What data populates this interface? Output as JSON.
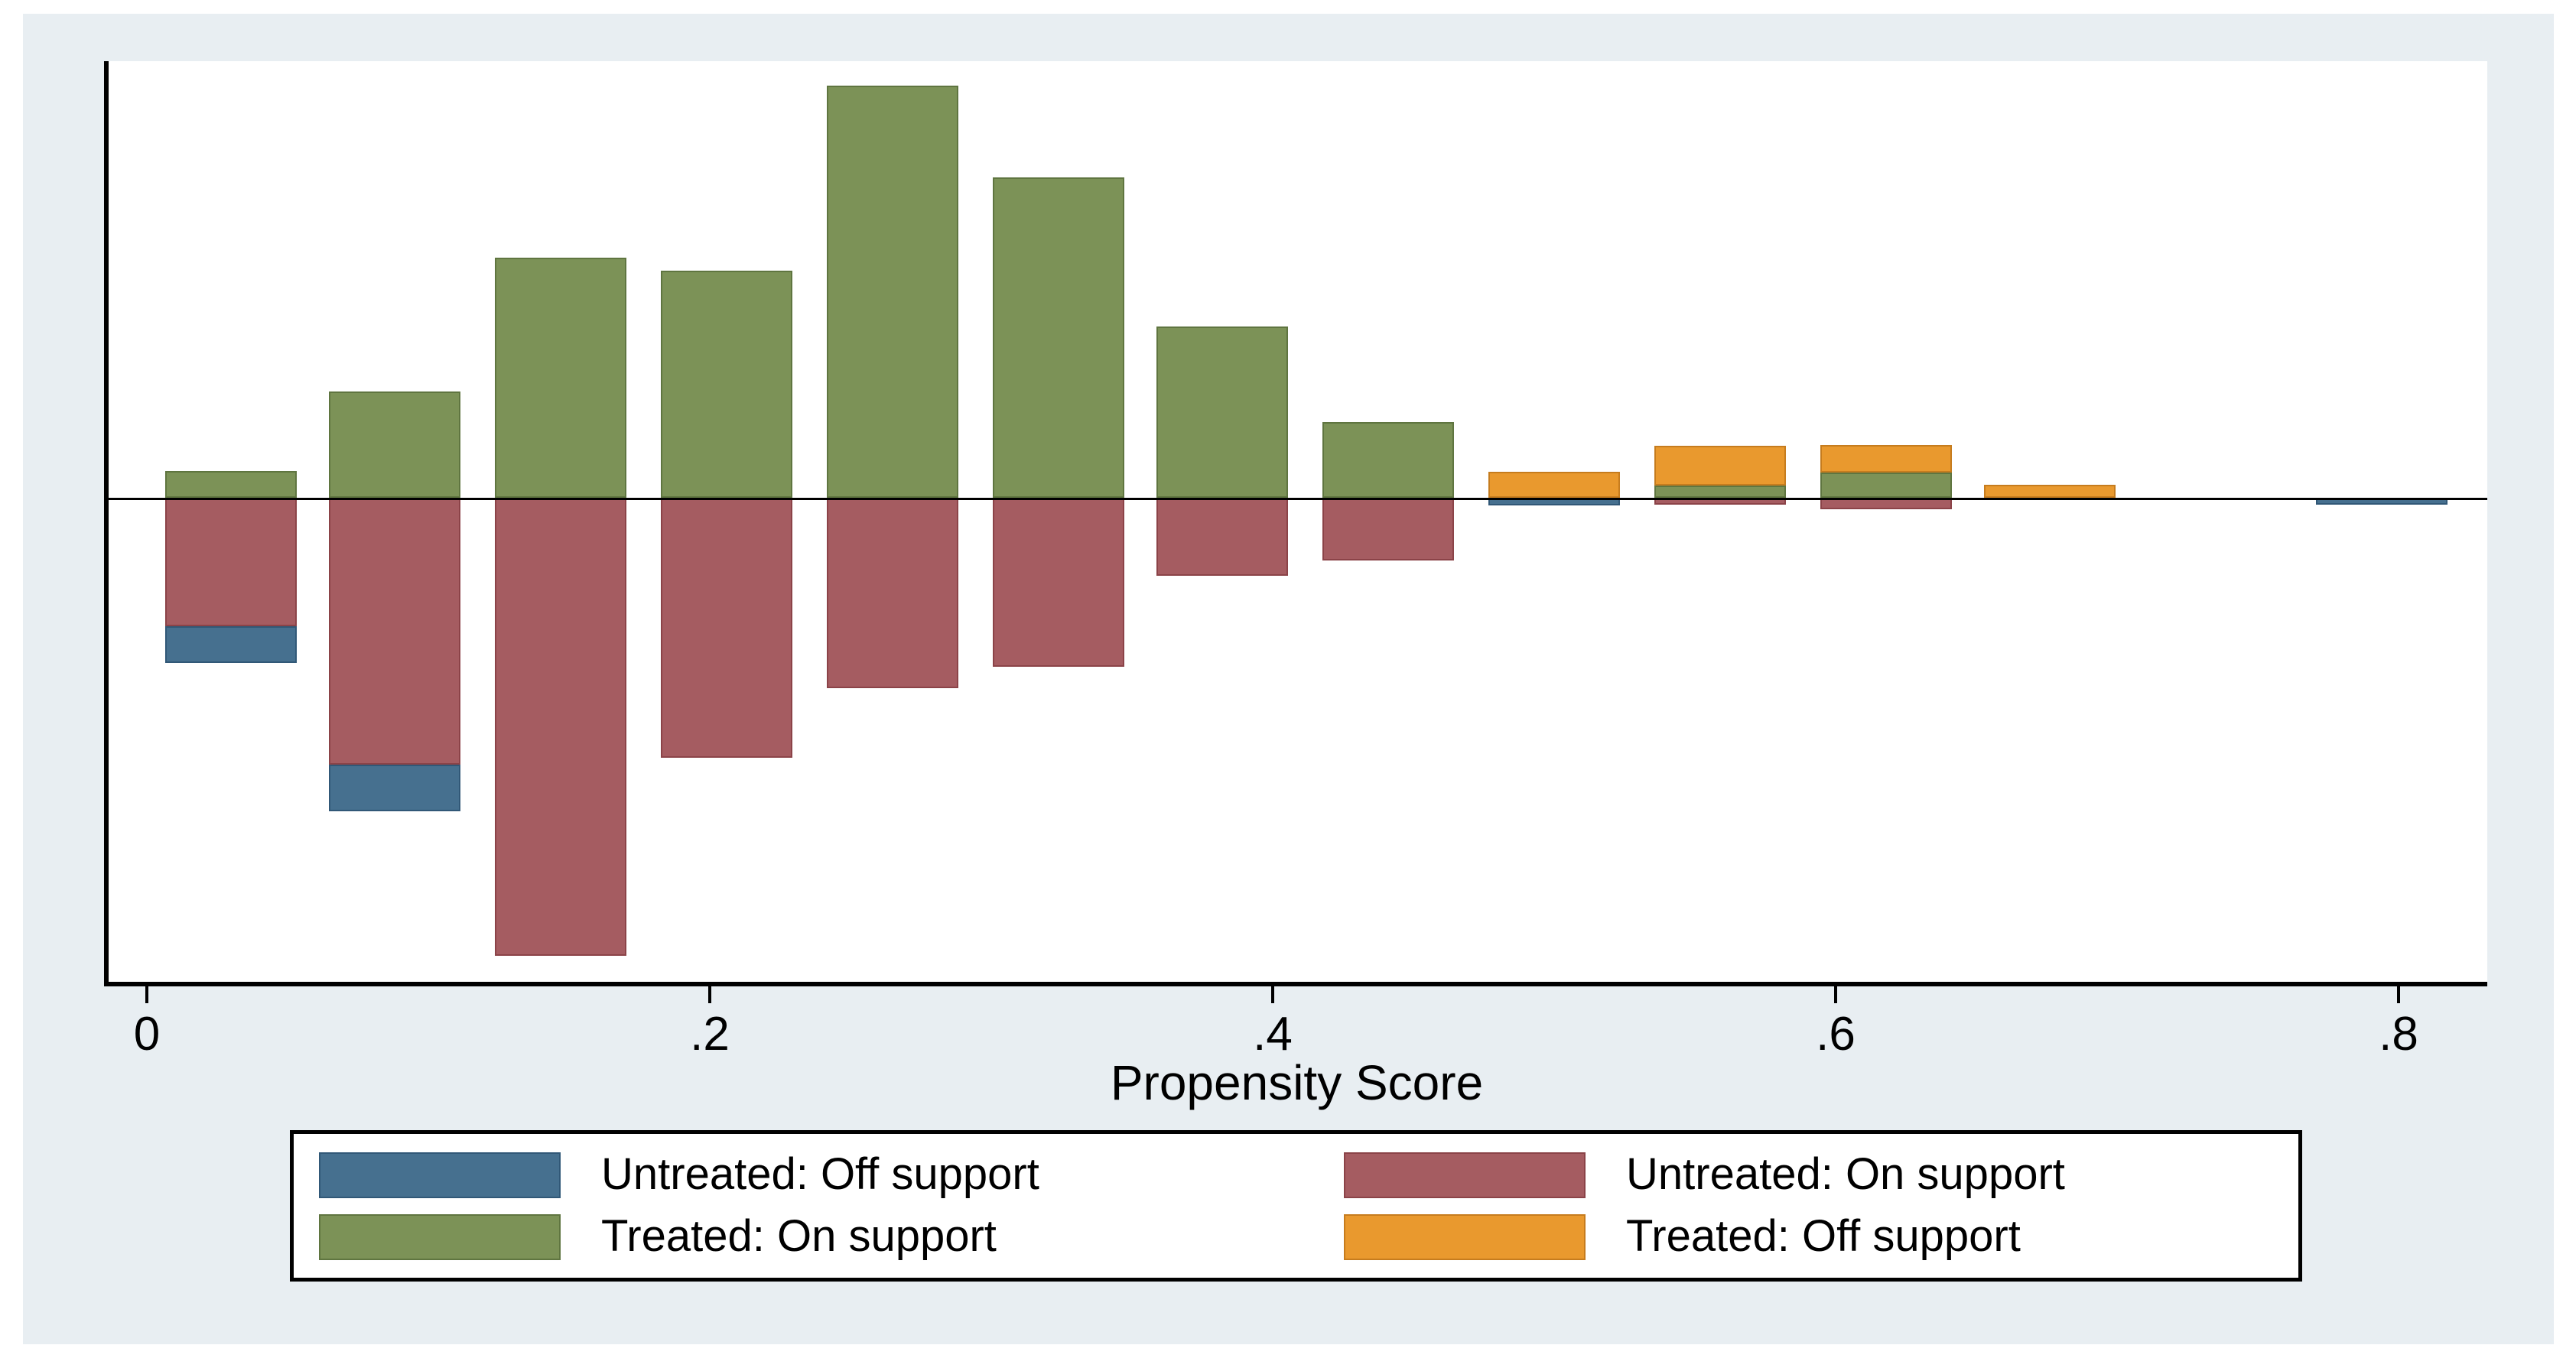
{
  "figure": {
    "background": "#ffffff",
    "panel_color": "#e8eef2"
  },
  "x_axis": {
    "label": "Propensity Score",
    "ticks": [
      {
        "value": 0,
        "label": "0"
      },
      {
        "value": 0.2,
        "label": ".2"
      },
      {
        "value": 0.4,
        "label": ".4"
      },
      {
        "value": 0.6,
        "label": ".6"
      },
      {
        "value": 0.8,
        "label": ".8"
      }
    ]
  },
  "legend": {
    "items": [
      {
        "key": "untreated_off",
        "label": "Untreated: Off support",
        "color": "#46708f"
      },
      {
        "key": "untreated_on",
        "label": "Untreated: On support",
        "color": "#a55c61"
      },
      {
        "key": "treated_on",
        "label": "Treated: On support",
        "color": "#7c9257"
      },
      {
        "key": "treated_off",
        "label": "Treated: Off support",
        "color": "#e9992e"
      }
    ]
  },
  "colors": {
    "treated_on": "#7c9257",
    "treated_on_border": "#5f7540",
    "treated_off": "#e9992e",
    "treated_off_border": "#c67c1e",
    "untreated_on": "#a55c61",
    "untreated_on_border": "#8b4348",
    "untreated_off": "#46708f",
    "untreated_off_border": "#315877",
    "axis": "#000000"
  },
  "chart_data": {
    "type": "bar",
    "title": "",
    "xlabel": "Propensity Score",
    "ylabel": "",
    "xlim": [
      -0.015,
      0.832
    ],
    "x_ticks": [
      0,
      0.2,
      0.4,
      0.6,
      0.8
    ],
    "grid": false,
    "legend_position": "bottom",
    "y_axis_note": "No y-axis labels in source; values are relative frequencies normalized so the tallest treated bar = 1.0. Treated groups plot upward from the baseline, untreated groups plot downward.",
    "bar_width": 0.047,
    "bin_spacing": 0.0588,
    "series_keys": [
      "treated_on",
      "treated_off",
      "untreated_on",
      "untreated_off"
    ],
    "bins": [
      {
        "center": 0.03,
        "treated_on": 0.065,
        "treated_off": 0,
        "untreated_on": 0.312,
        "untreated_off": 0.089
      },
      {
        "center": 0.088,
        "treated_on": 0.258,
        "treated_off": 0,
        "untreated_on": 0.647,
        "untreated_off": 0.113
      },
      {
        "center": 0.147,
        "treated_on": 0.583,
        "treated_off": 0,
        "untreated_on": 1.111,
        "untreated_off": 0
      },
      {
        "center": 0.206,
        "treated_on": 0.551,
        "treated_off": 0,
        "untreated_on": 0.631,
        "untreated_off": 0
      },
      {
        "center": 0.265,
        "treated_on": 1.0,
        "treated_off": 0,
        "untreated_on": 0.462,
        "untreated_off": 0
      },
      {
        "center": 0.324,
        "treated_on": 0.777,
        "treated_off": 0,
        "untreated_on": 0.41,
        "untreated_off": 0
      },
      {
        "center": 0.382,
        "treated_on": 0.416,
        "treated_off": 0,
        "untreated_on": 0.189,
        "untreated_off": 0
      },
      {
        "center": 0.441,
        "treated_on": 0.184,
        "treated_off": 0,
        "untreated_on": 0.152,
        "untreated_off": 0
      },
      {
        "center": 0.5,
        "treated_on": 0,
        "treated_off": 0.063,
        "untreated_on": 0,
        "untreated_off": 0.019
      },
      {
        "center": 0.559,
        "treated_on": 0.03,
        "treated_off": 0.096,
        "untreated_on": 0.017,
        "untreated_off": 0
      },
      {
        "center": 0.618,
        "treated_on": 0.061,
        "treated_off": 0.067,
        "untreated_on": 0.028,
        "untreated_off": 0
      },
      {
        "center": 0.676,
        "treated_on": 0,
        "treated_off": 0.032,
        "untreated_on": 0,
        "untreated_off": 0
      },
      {
        "center": 0.794,
        "treated_on": 0,
        "treated_off": 0,
        "untreated_on": 0,
        "untreated_off": 0.017
      }
    ]
  }
}
